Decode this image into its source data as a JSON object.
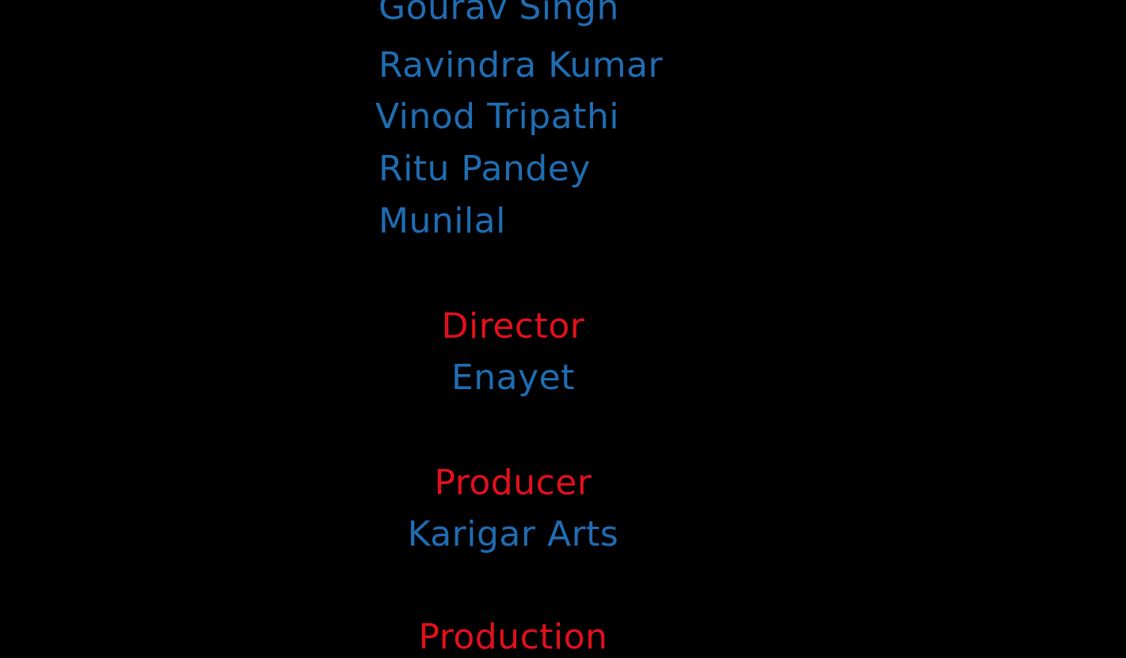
{
  "colors": {
    "background": "#000000",
    "name": "#1f6db3",
    "role": "#e3101c"
  },
  "cast": [
    "Gourav Singh",
    "Ravindra Kumar",
    "Vinod Tripathi",
    "Ritu Pandey",
    "Munilal"
  ],
  "credits": [
    {
      "role": "Director",
      "name": "Enayet"
    },
    {
      "role": "Producer",
      "name": "Karigar Arts"
    },
    {
      "role": "Production"
    }
  ]
}
